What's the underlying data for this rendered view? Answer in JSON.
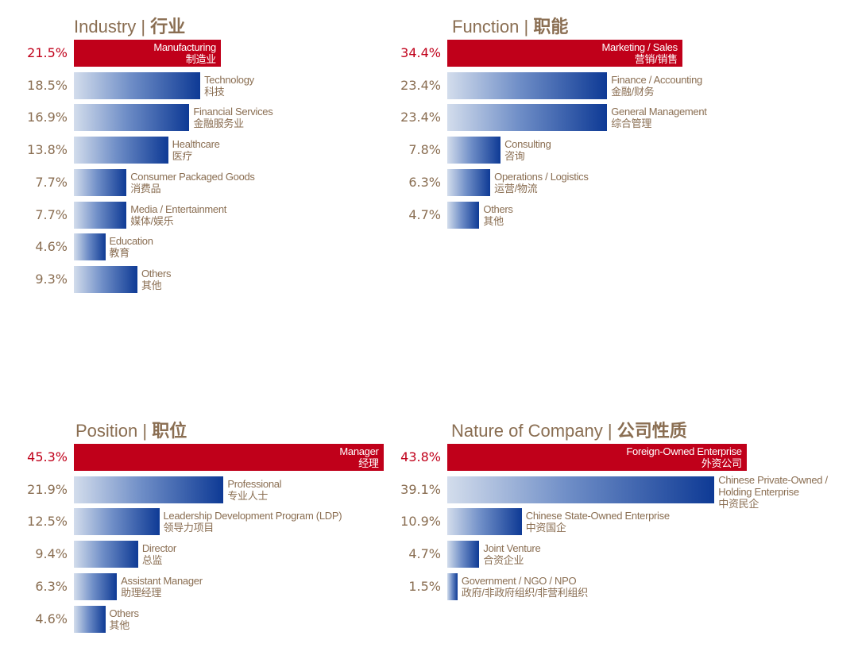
{
  "chart_data": [
    {
      "type": "bar",
      "orientation": "horizontal",
      "title_en": "Industry",
      "title_zh": "行业",
      "xlim": [
        0,
        50
      ],
      "categories": [
        {
          "en": "Manufacturing",
          "cn": "制造业",
          "value": 21.5,
          "label": "21.5%",
          "highlight": true
        },
        {
          "en": "Technology",
          "cn": "科技",
          "value": 18.5,
          "label": "18.5%",
          "highlight": false
        },
        {
          "en": "Financial Services",
          "cn": "金融服务业",
          "value": 16.9,
          "label": "16.9%",
          "highlight": false
        },
        {
          "en": "Healthcare",
          "cn": "医疗",
          "value": 13.8,
          "label": "13.8%",
          "highlight": false
        },
        {
          "en": "Consumer Packaged Goods",
          "cn": "消费品",
          "value": 7.7,
          "label": "7.7%",
          "highlight": false
        },
        {
          "en": "Media / Entertainment",
          "cn": "媒体/娱乐",
          "value": 7.7,
          "label": "7.7%",
          "highlight": false
        },
        {
          "en": "Education",
          "cn": "教育",
          "value": 4.6,
          "label": "4.6%",
          "highlight": false
        },
        {
          "en": "Others",
          "cn": "其他",
          "value": 9.3,
          "label": "9.3%",
          "highlight": false
        }
      ]
    },
    {
      "type": "bar",
      "orientation": "horizontal",
      "title_en": "Function",
      "title_zh": "职能",
      "xlim": [
        0,
        50
      ],
      "categories": [
        {
          "en": "Marketing / Sales",
          "cn": "营销/销售",
          "value": 34.4,
          "label": "34.4%",
          "highlight": true
        },
        {
          "en": "Finance / Accounting",
          "cn": "金融/财务",
          "value": 23.4,
          "label": "23.4%",
          "highlight": false
        },
        {
          "en": "General Management",
          "cn": "综合管理",
          "value": 23.4,
          "label": "23.4%",
          "highlight": false
        },
        {
          "en": "Consulting",
          "cn": "咨询",
          "value": 7.8,
          "label": "7.8%",
          "highlight": false
        },
        {
          "en": "Operations / Logistics",
          "cn": "运营/物流",
          "value": 6.3,
          "label": "6.3%",
          "highlight": false
        },
        {
          "en": "Others",
          "cn": "其他",
          "value": 4.7,
          "label": "4.7%",
          "highlight": false
        }
      ]
    },
    {
      "type": "bar",
      "orientation": "horizontal",
      "title_en": "Position",
      "title_zh": "职位",
      "xlim": [
        0,
        50
      ],
      "categories": [
        {
          "en": "Manager",
          "cn": "经理",
          "value": 45.3,
          "label": "45.3%",
          "highlight": true
        },
        {
          "en": "Professional",
          "cn": "专业人士",
          "value": 21.9,
          "label": "21.9%",
          "highlight": false
        },
        {
          "en": "Leadership Development Program (LDP)",
          "cn": "领导力项目",
          "value": 12.5,
          "label": "12.5%",
          "highlight": false
        },
        {
          "en": "Director",
          "cn": "总监",
          "value": 9.4,
          "label": "9.4%",
          "highlight": false
        },
        {
          "en": "Assistant Manager",
          "cn": "助理经理",
          "value": 6.3,
          "label": "6.3%",
          "highlight": false
        },
        {
          "en": "Others",
          "cn": "其他",
          "value": 4.6,
          "label": "4.6%",
          "highlight": false
        }
      ]
    },
    {
      "type": "bar",
      "orientation": "horizontal",
      "title_en": "Nature of Company",
      "title_zh": "公司性质",
      "xlim": [
        0,
        50
      ],
      "categories": [
        {
          "en": "Foreign-Owned Enterprise",
          "cn": "外资公司",
          "value": 43.8,
          "label": "43.8%",
          "highlight": true
        },
        {
          "en": "Chinese Private-Owned / Holding Enterprise",
          "cn": "中资民企",
          "value": 39.1,
          "label": "39.1%",
          "highlight": false
        },
        {
          "en": "Chinese State-Owned Enterprise",
          "cn": "中资国企",
          "value": 10.9,
          "label": "10.9%",
          "highlight": false
        },
        {
          "en": "Joint Venture",
          "cn": "合资企业",
          "value": 4.7,
          "label": "4.7%",
          "highlight": false
        },
        {
          "en": "Government / NGO / NPO",
          "cn": "政府/非政府组织/非营利组织",
          "value": 1.5,
          "label": "1.5%",
          "highlight": false
        }
      ]
    }
  ]
}
